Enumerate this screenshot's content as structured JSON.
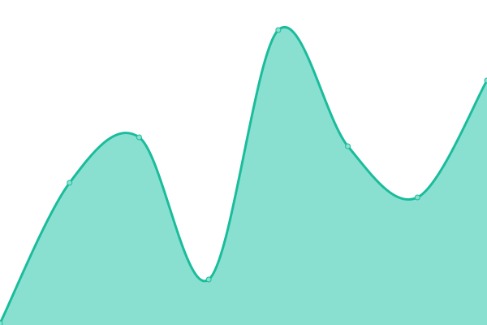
{
  "chart_data": {
    "type": "area",
    "x": [
      0,
      1,
      2,
      3,
      4,
      5,
      6,
      7
    ],
    "values": [
      2,
      175,
      231,
      56,
      363,
      220,
      157,
      301
    ],
    "ylim": [
      0,
      400
    ],
    "grid": false,
    "legend": "none",
    "curve": "smooth",
    "colors": {
      "line": "#1abc9c",
      "fill": "#8ae0d0",
      "point_fill": "#8ae0d0"
    }
  }
}
